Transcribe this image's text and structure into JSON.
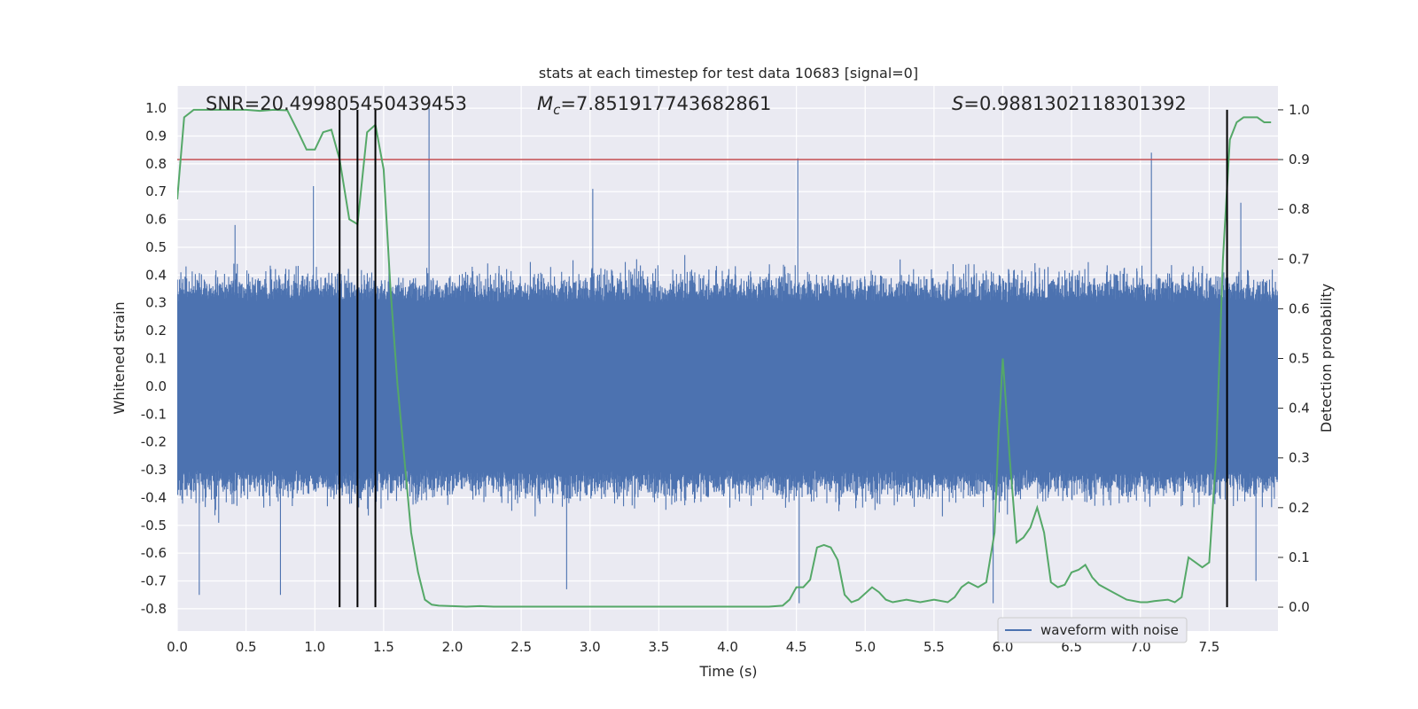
{
  "chart_data": {
    "type": "line",
    "title": "stats at each timestep for test data 10683 [signal=0]",
    "xlabel": "Time (s)",
    "ylabel": "Whitened strain",
    "y2label": "Detection probability",
    "xlim": [
      0.0,
      8.0
    ],
    "ylim": [
      -0.88,
      1.08
    ],
    "y2lim": [
      -0.048,
      1.048
    ],
    "x_ticks": [
      "0.0",
      "0.5",
      "1.0",
      "1.5",
      "2.0",
      "2.5",
      "3.0",
      "3.5",
      "4.0",
      "4.5",
      "5.0",
      "5.5",
      "6.0",
      "6.5",
      "7.0",
      "7.5"
    ],
    "y_ticks": [
      "1.0",
      "0.9",
      "0.8",
      "0.7",
      "0.6",
      "0.5",
      "0.4",
      "0.3",
      "0.2",
      "0.1",
      "0.0",
      "-0.1",
      "-0.2",
      "-0.3",
      "-0.4",
      "-0.5",
      "-0.6",
      "-0.7",
      "-0.8"
    ],
    "y2_ticks": [
      "1.0",
      "0.9",
      "0.8",
      "0.7",
      "0.6",
      "0.5",
      "0.4",
      "0.3",
      "0.2",
      "0.1",
      "0.0"
    ],
    "annotations": {
      "snr": "SNR=20.499805450439453",
      "mc_symbol": "M",
      "mc_sub": "c",
      "mc_value": "=7.851917743682861",
      "s_symbol": "S",
      "s_value": "=0.9881302118301392"
    },
    "threshold_prob": 0.9,
    "threshold_color": "#c44e52",
    "event_lines_time": [
      1.18,
      1.31,
      1.44,
      7.63
    ],
    "event_line_ymax_prob": 1.0,
    "legend": {
      "label": "waveform with noise",
      "location": "lower right"
    },
    "colors": {
      "waveform": "#4c72b0",
      "probability": "#55a868",
      "event": "#000000",
      "background": "#eaeaf2",
      "grid": "#ffffff"
    },
    "waveform_summary": {
      "core_band": [
        -0.3,
        0.3
      ],
      "typical_spike_top": 0.45,
      "typical_spike_bottom": -0.45,
      "peak_spikes": [
        {
          "t": 0.16,
          "v": -0.75
        },
        {
          "t": 0.42,
          "v": 0.58
        },
        {
          "t": 0.75,
          "v": -0.75
        },
        {
          "t": 0.99,
          "v": 0.72
        },
        {
          "t": 1.83,
          "v": 1.0
        },
        {
          "t": 2.83,
          "v": -0.73
        },
        {
          "t": 3.02,
          "v": 0.71
        },
        {
          "t": 4.51,
          "v": 0.82
        },
        {
          "t": 4.52,
          "v": -0.78
        },
        {
          "t": 5.93,
          "v": -0.78
        },
        {
          "t": 7.08,
          "v": 0.84
        },
        {
          "t": 7.84,
          "v": -0.7
        },
        {
          "t": 7.73,
          "v": 0.66
        }
      ]
    },
    "series": [
      {
        "name": "Detection probability",
        "x": [
          0.0,
          0.05,
          0.12,
          0.2,
          0.3,
          0.4,
          0.5,
          0.6,
          0.7,
          0.8,
          0.88,
          0.94,
          1.0,
          1.06,
          1.12,
          1.18,
          1.25,
          1.31,
          1.38,
          1.44,
          1.5,
          1.55,
          1.6,
          1.65,
          1.7,
          1.75,
          1.8,
          1.85,
          1.9,
          2.0,
          2.1,
          2.2,
          2.3,
          2.4,
          2.5,
          2.7,
          3.0,
          3.5,
          4.0,
          4.3,
          4.4,
          4.45,
          4.5,
          4.55,
          4.6,
          4.65,
          4.7,
          4.75,
          4.8,
          4.85,
          4.9,
          4.95,
          5.05,
          5.1,
          5.15,
          5.2,
          5.3,
          5.4,
          5.5,
          5.6,
          5.65,
          5.7,
          5.75,
          5.82,
          5.88,
          5.94,
          5.97,
          6.0,
          6.05,
          6.1,
          6.15,
          6.2,
          6.25,
          6.3,
          6.35,
          6.4,
          6.45,
          6.5,
          6.55,
          6.6,
          6.65,
          6.7,
          6.8,
          6.9,
          7.0,
          7.05,
          7.1,
          7.2,
          7.25,
          7.3,
          7.35,
          7.4,
          7.45,
          7.5,
          7.55,
          7.6,
          7.65,
          7.7,
          7.75,
          7.8,
          7.85,
          7.9,
          7.95
        ],
        "values": [
          0.82,
          0.985,
          1.0,
          1.0,
          1.0,
          1.0,
          1.0,
          0.998,
          1.0,
          0.999,
          0.955,
          0.92,
          0.92,
          0.955,
          0.96,
          0.9,
          0.78,
          0.77,
          0.955,
          0.97,
          0.88,
          0.64,
          0.45,
          0.3,
          0.15,
          0.07,
          0.015,
          0.005,
          0.003,
          0.002,
          0.001,
          0.002,
          0.001,
          0.001,
          0.001,
          0.001,
          0.001,
          0.001,
          0.001,
          0.001,
          0.003,
          0.015,
          0.04,
          0.04,
          0.055,
          0.12,
          0.125,
          0.12,
          0.095,
          0.025,
          0.01,
          0.015,
          0.04,
          0.03,
          0.015,
          0.01,
          0.015,
          0.01,
          0.015,
          0.01,
          0.02,
          0.04,
          0.05,
          0.04,
          0.05,
          0.15,
          0.35,
          0.5,
          0.3,
          0.13,
          0.14,
          0.16,
          0.2,
          0.15,
          0.05,
          0.04,
          0.045,
          0.07,
          0.075,
          0.085,
          0.06,
          0.045,
          0.03,
          0.015,
          0.01,
          0.01,
          0.012,
          0.015,
          0.01,
          0.02,
          0.1,
          0.09,
          0.08,
          0.09,
          0.3,
          0.7,
          0.94,
          0.975,
          0.985,
          0.985,
          0.985,
          0.975,
          0.975
        ]
      }
    ]
  }
}
